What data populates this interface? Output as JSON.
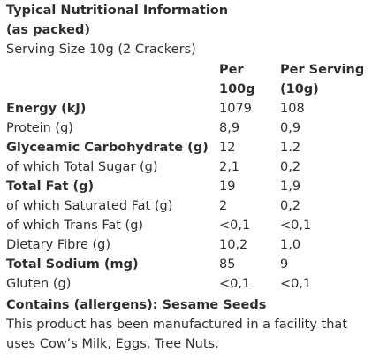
{
  "panel": {
    "title_line1": "Typical Nutritional Information",
    "title_line2": "(as packed)",
    "serving_size": "Serving Size 10g (2 Crackers)"
  },
  "columns": {
    "per_line1": "Per",
    "per_line2": "100g",
    "serving_line1": "Per Serving",
    "serving_line2": "(10g)"
  },
  "rows": [
    {
      "name": "Energy (kJ)",
      "per100": "1079",
      "serving": "108",
      "bold": true
    },
    {
      "name": "Protein (g)",
      "per100": "8,9",
      "serving": "0,9",
      "bold": false
    },
    {
      "name": "Glyceamic Carbohydrate (g)",
      "per100": "12",
      "serving": "1.2",
      "bold": true
    },
    {
      "name": "of which Total Sugar (g)",
      "per100": "2,1",
      "serving": "0,2",
      "bold": false
    },
    {
      "name": "Total Fat (g)",
      "per100": "19",
      "serving": "1,9",
      "bold": true
    },
    {
      "name": "of which Saturated Fat (g)",
      "per100": "2",
      "serving": "0,2",
      "bold": false
    },
    {
      "name": "of which Trans Fat (g)",
      "per100": "<0,1",
      "serving": "<0,1",
      "bold": false
    },
    {
      "name": "Dietary Fibre (g)",
      "per100": "10,2",
      "serving": "1,0",
      "bold": false
    },
    {
      "name": "Total Sodium (mg)",
      "per100": "85",
      "serving": "9",
      "bold": true
    },
    {
      "name": "Gluten (g)",
      "per100": "<0,1",
      "serving": "<0,1",
      "bold": false
    }
  ],
  "footer": {
    "allergens": "Contains (allergens): Sesame Seeds",
    "facility_line1": "This product has been manufactured in a facility that",
    "facility_line2": "uses Cow’s Milk, Eggs, Tree Nuts."
  }
}
